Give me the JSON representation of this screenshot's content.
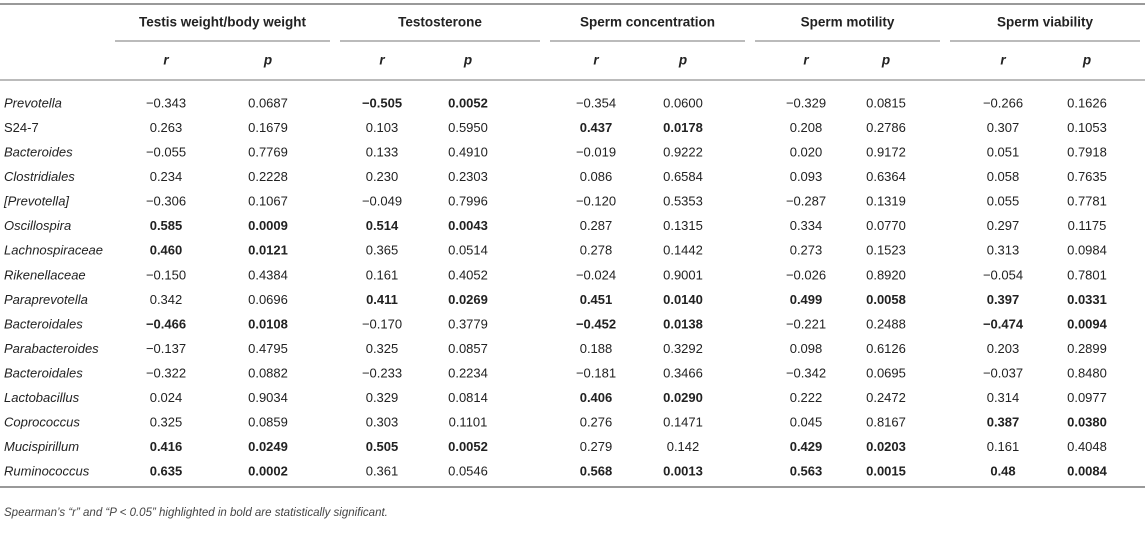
{
  "table": {
    "groups": [
      "Testis weight/body weight",
      "Testosterone",
      "Sperm concentration",
      "Sperm motility",
      "Sperm viability"
    ],
    "subheaders": [
      "r",
      "p"
    ],
    "rows": [
      {
        "taxon": "Prevotella",
        "italic": true,
        "cells": [
          "−0.343",
          "0.0687",
          "−0.505",
          "0.0052",
          "−0.354",
          "0.0600",
          "−0.329",
          "0.0815",
          "−0.266",
          "0.1626"
        ],
        "bold": [
          2,
          3
        ]
      },
      {
        "taxon": "S24-7",
        "italic": false,
        "cells": [
          "0.263",
          "0.1679",
          "0.103",
          "0.5950",
          "0.437",
          "0.0178",
          "0.208",
          "0.2786",
          "0.307",
          "0.1053"
        ],
        "bold": [
          4,
          5
        ]
      },
      {
        "taxon": "Bacteroides",
        "italic": true,
        "cells": [
          "−0.055",
          "0.7769",
          "0.133",
          "0.4910",
          "−0.019",
          "0.9222",
          "0.020",
          "0.9172",
          "0.051",
          "0.7918"
        ],
        "bold": []
      },
      {
        "taxon": "Clostridiales",
        "italic": true,
        "cells": [
          "0.234",
          "0.2228",
          "0.230",
          "0.2303",
          "0.086",
          "0.6584",
          "0.093",
          "0.6364",
          "0.058",
          "0.7635"
        ],
        "bold": []
      },
      {
        "taxon": "[Prevotella]",
        "italic": true,
        "cells": [
          "−0.306",
          "0.1067",
          "−0.049",
          "0.7996",
          "−0.120",
          "0.5353",
          "−0.287",
          "0.1319",
          "0.055",
          "0.7781"
        ],
        "bold": []
      },
      {
        "taxon": "Oscillospira",
        "italic": true,
        "cells": [
          "0.585",
          "0.0009",
          "0.514",
          "0.0043",
          "0.287",
          "0.1315",
          "0.334",
          "0.0770",
          "0.297",
          "0.1175"
        ],
        "bold": [
          0,
          1,
          2,
          3
        ]
      },
      {
        "taxon": "Lachnospiraceae",
        "italic": true,
        "cells": [
          "0.460",
          "0.0121",
          "0.365",
          "0.0514",
          "0.278",
          "0.1442",
          "0.273",
          "0.1523",
          "0.313",
          "0.0984"
        ],
        "bold": [
          0,
          1
        ]
      },
      {
        "taxon": "Rikenellaceae",
        "italic": true,
        "cells": [
          "−0.150",
          "0.4384",
          "0.161",
          "0.4052",
          "−0.024",
          "0.9001",
          "−0.026",
          "0.8920",
          "−0.054",
          "0.7801"
        ],
        "bold": []
      },
      {
        "taxon": "Paraprevotella",
        "italic": true,
        "cells": [
          "0.342",
          "0.0696",
          "0.411",
          "0.0269",
          "0.451",
          "0.0140",
          "0.499",
          "0.0058",
          "0.397",
          "0.0331"
        ],
        "bold": [
          2,
          3,
          4,
          5,
          6,
          7,
          8,
          9
        ]
      },
      {
        "taxon": "Bacteroidales",
        "italic": true,
        "cells": [
          "−0.466",
          "0.0108",
          "−0.170",
          "0.3779",
          "−0.452",
          "0.0138",
          "−0.221",
          "0.2488",
          "−0.474",
          "0.0094"
        ],
        "bold": [
          0,
          1,
          4,
          5,
          8,
          9
        ]
      },
      {
        "taxon": "Parabacteroides",
        "italic": true,
        "cells": [
          "−0.137",
          "0.4795",
          "0.325",
          "0.0857",
          "0.188",
          "0.3292",
          "0.098",
          "0.6126",
          "0.203",
          "0.2899"
        ],
        "bold": []
      },
      {
        "taxon": "Bacteroidales",
        "italic": true,
        "cells": [
          "−0.322",
          "0.0882",
          "−0.233",
          "0.2234",
          "−0.181",
          "0.3466",
          "−0.342",
          "0.0695",
          "−0.037",
          "0.8480"
        ],
        "bold": []
      },
      {
        "taxon": "Lactobacillus",
        "italic": true,
        "cells": [
          "0.024",
          "0.9034",
          "0.329",
          "0.0814",
          "0.406",
          "0.0290",
          "0.222",
          "0.2472",
          "0.314",
          "0.0977"
        ],
        "bold": [
          4,
          5
        ]
      },
      {
        "taxon": "Coprococcus",
        "italic": true,
        "cells": [
          "0.325",
          "0.0859",
          "0.303",
          "0.1101",
          "0.276",
          "0.1471",
          "0.045",
          "0.8167",
          "0.387",
          "0.0380"
        ],
        "bold": [
          8,
          9
        ]
      },
      {
        "taxon": "Mucispirillum",
        "italic": true,
        "cells": [
          "0.416",
          "0.0249",
          "0.505",
          "0.0052",
          "0.279",
          "0.142",
          "0.429",
          "0.0203",
          "0.161",
          "0.4048"
        ],
        "bold": [
          0,
          1,
          2,
          3,
          6,
          7
        ]
      },
      {
        "taxon": "Ruminococcus",
        "italic": true,
        "cells": [
          "0.635",
          "0.0002",
          "0.361",
          "0.0546",
          "0.568",
          "0.0013",
          "0.563",
          "0.0015",
          "0.48",
          "0.0084"
        ],
        "bold": [
          0,
          1,
          4,
          5,
          6,
          7,
          8,
          9
        ]
      }
    ],
    "footnote": "Spearman’s “r” and “P < 0.05” highlighted in bold are statistically significant."
  }
}
